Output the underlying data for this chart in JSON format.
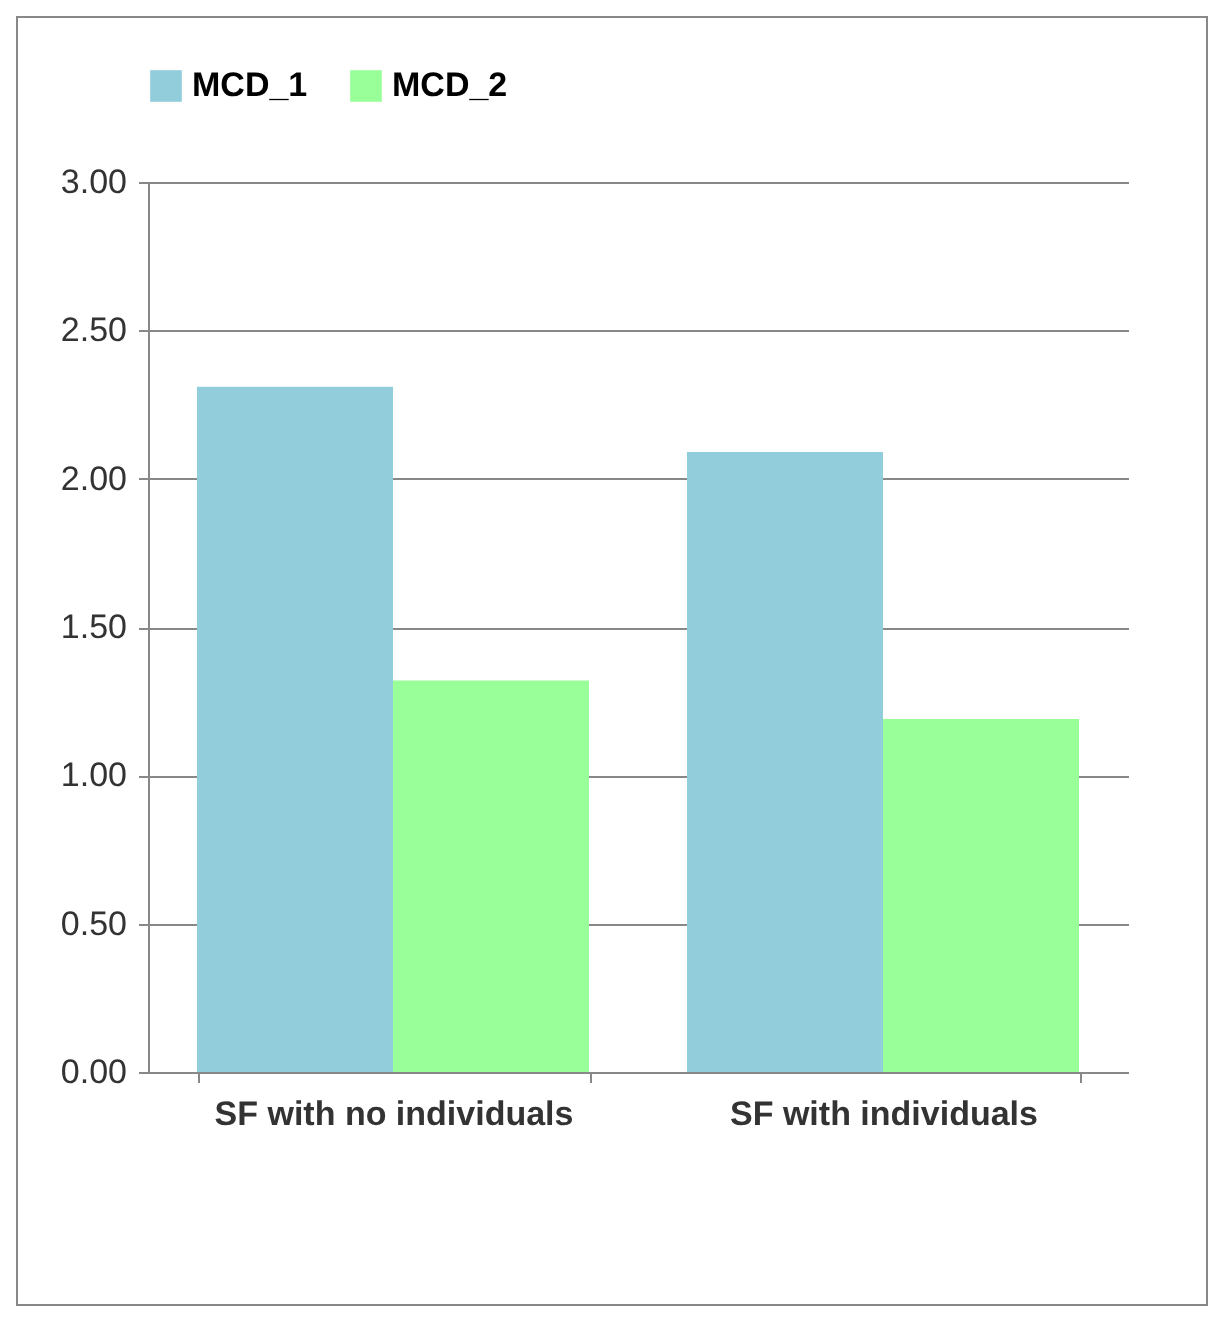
{
  "chart_data": {
    "type": "bar",
    "categories": [
      "SF with no individuals",
      "SF with individuals"
    ],
    "series": [
      {
        "name": "MCD_1",
        "color": "#92cddc",
        "values": [
          2.31,
          2.09
        ]
      },
      {
        "name": "MCD_2",
        "color": "#99ff99",
        "values": [
          1.32,
          1.19
        ]
      }
    ],
    "ylim": [
      0,
      3
    ],
    "yticks": [
      {
        "value": 0,
        "label": "0.00"
      },
      {
        "value": 0.5,
        "label": "0.50"
      },
      {
        "value": 1,
        "label": "1.00"
      },
      {
        "value": 1.5,
        "label": "1.50"
      },
      {
        "value": 2,
        "label": "2.00"
      },
      {
        "value": 2.5,
        "label": "2.50"
      },
      {
        "value": 3,
        "label": "3.00"
      }
    ],
    "grid": "y",
    "legend": "top"
  }
}
